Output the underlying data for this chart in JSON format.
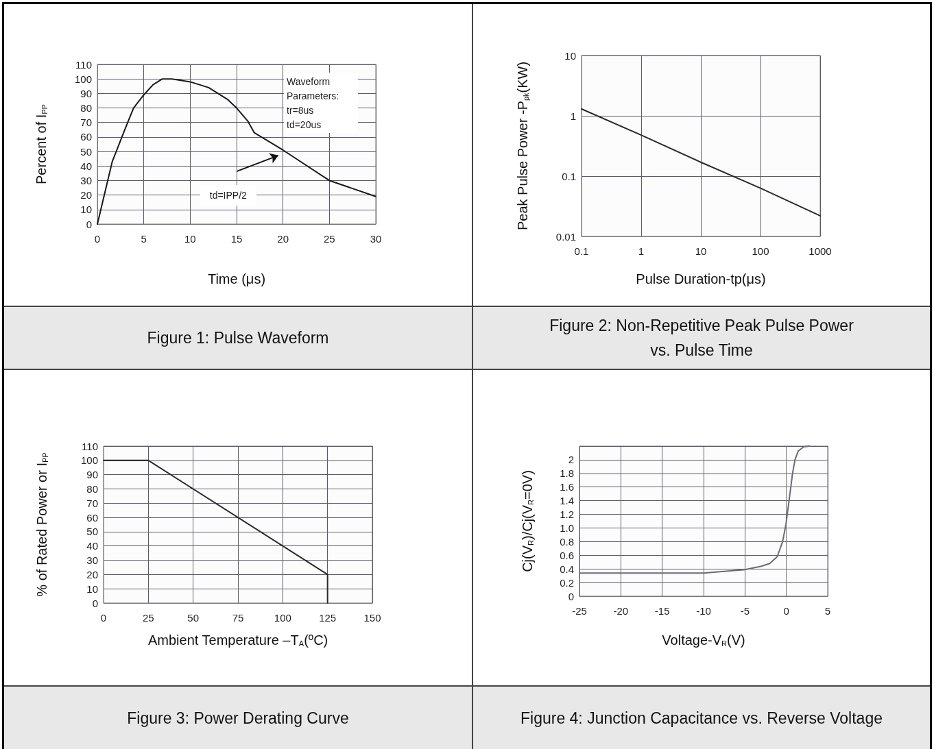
{
  "chart_data": [
    {
      "type": "line",
      "title": "Figure 1: Pulse Waveform",
      "xlabel": "Time (μs)",
      "ylabel": "Percent of I$_{PP}$",
      "x": [
        0,
        1.6,
        3.2,
        3.9,
        5,
        6,
        7,
        8,
        10,
        12,
        13,
        14,
        15,
        16.2,
        16.9,
        20,
        25,
        30
      ],
      "series": [
        {
          "color": "#1a1a1a",
          "values": [
            0,
            43,
            69,
            80,
            89,
            96,
            100,
            100,
            98,
            94,
            90,
            86,
            80,
            71,
            63,
            51,
            30,
            19
          ]
        }
      ],
      "xlim": [
        0,
        30
      ],
      "xticks": [
        0,
        5,
        10,
        15,
        20,
        25,
        30
      ],
      "ylim": [
        0,
        110
      ],
      "yticks": [
        0,
        10,
        20,
        30,
        40,
        50,
        60,
        70,
        80,
        90,
        100,
        110
      ],
      "grid": true,
      "annotations": [
        "Waveform Parameters:",
        "tr=8us",
        "td=20us",
        "td=IPP/2"
      ]
    },
    {
      "type": "line",
      "title": "Figure 2: Non-Repetitive Peak Pulse Power vs. Pulse Time",
      "xlabel": "Pulse Duration-tp(μs)",
      "ylabel": "Peak Pulse Power -P$_{pk}$(KW)",
      "x": [
        0.1,
        1,
        10,
        100,
        1000
      ],
      "series": [
        {
          "color": "#2a2a2a",
          "values": [
            1.3,
            0.48,
            0.17,
            0.063,
            0.022
          ]
        }
      ],
      "xlim": [
        0.1,
        1000
      ],
      "xticks": [
        0.1,
        1,
        10,
        100,
        1000
      ],
      "ylim": [
        0.01,
        10
      ],
      "yticks": [
        0.01,
        0.1,
        1,
        10
      ],
      "log": "xy",
      "grid": true
    },
    {
      "type": "line",
      "title": "Figure 3: Power Derating Curve",
      "xlabel": "Ambient Temperature –T$_{A}$(ºC)",
      "ylabel": "% of Rated Power or I$_{PP}$",
      "x": [
        0,
        25,
        125,
        125
      ],
      "series": [
        {
          "color": "#2a2a2a",
          "values": [
            100,
            100,
            20,
            0
          ]
        }
      ],
      "xlim": [
        0,
        150
      ],
      "xticks": [
        0,
        25,
        50,
        75,
        100,
        125,
        150
      ],
      "ylim": [
        0,
        110
      ],
      "yticks": [
        0,
        10,
        20,
        30,
        40,
        50,
        60,
        70,
        80,
        90,
        100,
        110
      ],
      "grid": true
    },
    {
      "type": "line",
      "title": "Figure 4: Junction Capacitance vs. Reverse Voltage",
      "xlabel": "Voltage-V$_{R}$(V)",
      "ylabel": "Cj(V$_{R}$)/Cj(V$_{R}$=0V)",
      "x": [
        -25,
        -10,
        -5,
        -3,
        -2,
        -1.1,
        -0.45,
        -0.05,
        0.35,
        0.75,
        1.05,
        1.45,
        2.1,
        2.8
      ],
      "series": [
        {
          "color": "#6a6a7a",
          "values": [
            0.34,
            0.34,
            0.39,
            0.44,
            0.48,
            0.58,
            0.8,
            1.05,
            1.42,
            1.8,
            2,
            2.13,
            2.19,
            2.2
          ]
        }
      ],
      "xlim": [
        -25,
        5
      ],
      "xticks": [
        -25,
        -20,
        -15,
        -10,
        -5,
        0,
        5
      ],
      "ylim": [
        0,
        2.2
      ],
      "yticks": [
        0,
        0.2,
        0.4,
        0.6,
        0.8,
        {
          "value": 1,
          "label": "1.0"
        },
        1.2,
        1.4,
        1.6,
        1.8,
        2
      ],
      "grid": true
    }
  ]
}
